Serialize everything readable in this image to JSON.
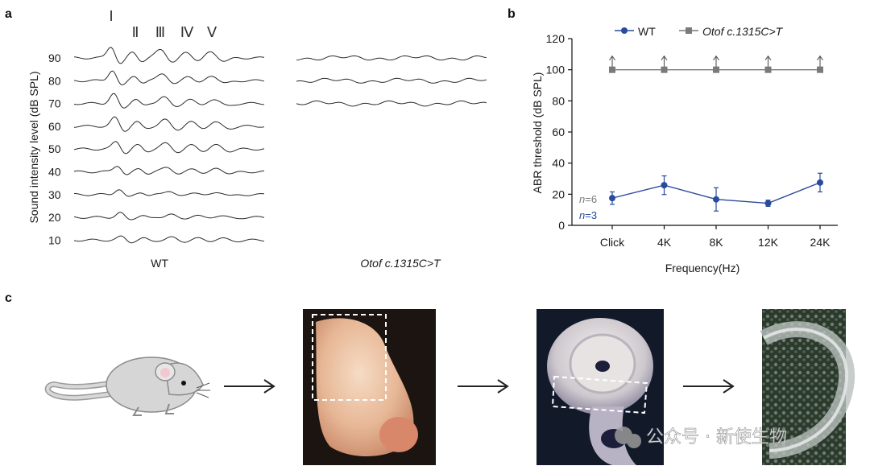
{
  "panels": {
    "a": {
      "letter": "a",
      "ylabel": "Sound intensity level (dB SPL)",
      "levels": [
        "90",
        "80",
        "70",
        "60",
        "50",
        "40",
        "30",
        "20",
        "10"
      ],
      "wave_labels": [
        "I",
        "II",
        "III",
        "IV",
        "V"
      ],
      "group_wt": "WT",
      "group_mut": "Otof c.1315C>T"
    },
    "b": {
      "letter": "b",
      "n_mut": "6",
      "n_wt": "3",
      "n_prefix": "n="
    },
    "c": {
      "letter": "c",
      "watermark": "公众号 · 新使生物"
    }
  },
  "chart_data": {
    "type": "line",
    "xlabel": "Frequency(Hz)",
    "ylabel": "ABR threshold (dB SPL)",
    "categories": [
      "Click",
      "4K",
      "8K",
      "12K",
      "24K"
    ],
    "ylim": [
      0,
      120
    ],
    "yticks": [
      0,
      20,
      40,
      60,
      80,
      100,
      120
    ],
    "legend_position": "top",
    "series": [
      {
        "name": "WT",
        "color": "#2a4a9c",
        "marker": "circle",
        "values": [
          17.5,
          25.8,
          16.7,
          14.2,
          27.5
        ],
        "errors": [
          4.0,
          6.0,
          7.5,
          2.0,
          6.0
        ]
      },
      {
        "name": "Otof c.1315C>T",
        "color": "#7a7a7a",
        "marker": "square",
        "values": [
          100,
          100,
          100,
          100,
          100
        ],
        "above_threshold_arrows": true
      }
    ]
  },
  "colors": {
    "trace": "#2b2b2b",
    "wt_series": "#2a4a9c",
    "mut_series": "#7a7a7a"
  }
}
